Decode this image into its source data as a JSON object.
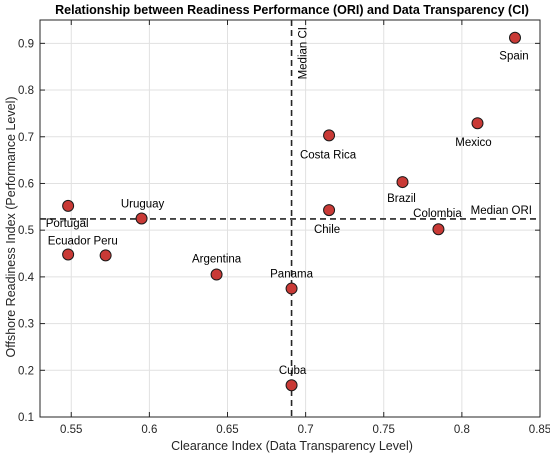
{
  "chart_data": {
    "type": "scatter",
    "title": "Relationship between Readiness Performance (ORI) and Data Transparency (CI)",
    "xlabel": "Clearance Index (Data Transparency Level)",
    "ylabel": "Offshore Readiness Index (Performance Level)",
    "xlim": [
      0.53,
      0.85
    ],
    "ylim": [
      0.1,
      0.95
    ],
    "xticks": [
      0.55,
      0.6,
      0.65,
      0.7,
      0.75,
      0.8,
      0.85
    ],
    "xtick_labels": [
      "0.55",
      "0.6",
      "0.65",
      "0.7",
      "0.75",
      "0.8",
      "0.85"
    ],
    "yticks": [
      0.1,
      0.2,
      0.3,
      0.4,
      0.5,
      0.6,
      0.7,
      0.8,
      0.9
    ],
    "ytick_labels": [
      "0.1",
      "0.2",
      "0.3",
      "0.4",
      "0.5",
      "0.6",
      "0.7",
      "0.8",
      "0.9"
    ],
    "grid": true,
    "marker_color": "#c93a36",
    "points": [
      {
        "label": "Portugal",
        "x": 0.548,
        "y": 0.552
      },
      {
        "label": "Ecuador",
        "x": 0.548,
        "y": 0.448
      },
      {
        "label": "Peru",
        "x": 0.572,
        "y": 0.446
      },
      {
        "label": "Uruguay",
        "x": 0.595,
        "y": 0.525
      },
      {
        "label": "Argentina",
        "x": 0.643,
        "y": 0.405
      },
      {
        "label": "Panama",
        "x": 0.691,
        "y": 0.375
      },
      {
        "label": "Cuba",
        "x": 0.691,
        "y": 0.168
      },
      {
        "label": "Costa Rica",
        "x": 0.715,
        "y": 0.703
      },
      {
        "label": "Chile",
        "x": 0.715,
        "y": 0.543
      },
      {
        "label": "Brazil",
        "x": 0.762,
        "y": 0.603
      },
      {
        "label": "Colombia",
        "x": 0.785,
        "y": 0.502
      },
      {
        "label": "Mexico",
        "x": 0.81,
        "y": 0.729
      },
      {
        "label": "Spain",
        "x": 0.834,
        "y": 0.912
      }
    ],
    "reference_lines": [
      {
        "label": "Median CI",
        "axis": "x",
        "value": 0.691
      },
      {
        "label": "Median ORI",
        "axis": "y",
        "value": 0.524
      }
    ]
  }
}
